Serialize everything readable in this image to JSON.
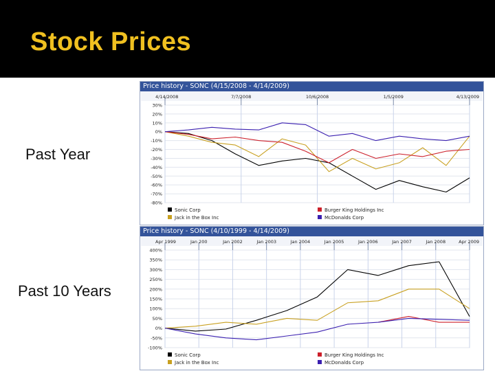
{
  "slide": {
    "title": "Stock Prices",
    "label_year": "Past Year",
    "label_10yr": "Past  10 Years"
  },
  "colors": {
    "title": "#f0c020",
    "header_bg": "#33539a",
    "sonic": "#000000",
    "jack": "#c8a020",
    "burger_king": "#cc1f2a",
    "mcdonalds": "#3a1fb0"
  },
  "chart_data": [
    {
      "type": "line",
      "title": "Price history - SONC (4/15/2008 - 4/14/2009)",
      "x_ticks": [
        "4/14/2008",
        "7/7/2008",
        "10/6/2008",
        "1/5/2009",
        "4/13/2009"
      ],
      "y_ticks": [
        "30%",
        "20%",
        "10%",
        "0%",
        "-10%",
        "-20%",
        "-30%",
        "-40%",
        "-50%",
        "-60%",
        "-70%",
        "-80%"
      ],
      "ylim": [
        -80,
        30
      ],
      "grid": true,
      "legend_position": "bottom",
      "x": [
        0,
        4,
        8,
        12,
        16,
        20,
        24,
        28,
        32,
        36,
        40,
        44,
        48,
        52
      ],
      "series": [
        {
          "name": "Sonic Corp",
          "color": "#000000",
          "values": [
            0,
            -2,
            -10,
            -25,
            -38,
            -33,
            -30,
            -35,
            -50,
            -65,
            -55,
            -62,
            -68,
            -52
          ]
        },
        {
          "name": "Jack in the Box Inc",
          "color": "#c8a020",
          "values": [
            0,
            -5,
            -12,
            -15,
            -28,
            -8,
            -15,
            -45,
            -30,
            -42,
            -35,
            -18,
            -38,
            -5
          ]
        },
        {
          "name": "Burger King Holdings Inc",
          "color": "#cc1f2a",
          "values": [
            0,
            -3,
            -8,
            -6,
            -10,
            -12,
            -22,
            -35,
            -20,
            -30,
            -25,
            -28,
            -22,
            -20
          ]
        },
        {
          "name": "McDonalds Corp",
          "color": "#3a1fb0",
          "values": [
            0,
            2,
            5,
            3,
            2,
            10,
            8,
            -5,
            -2,
            -10,
            -5,
            -8,
            -10,
            -5
          ]
        }
      ]
    },
    {
      "type": "line",
      "title": "Price history - SONC (4/10/1999 - 4/14/2009)",
      "x_ticks": [
        "Apr 1999",
        "Jan 200",
        "Jan 2002",
        "Jan 2003",
        "Jan 2004",
        "Jan 2005",
        "Jan 2006",
        "Jan 2007",
        "Jan 2008",
        "Apr 2009"
      ],
      "y_ticks": [
        "400%",
        "350%",
        "300%",
        "250%",
        "200%",
        "150%",
        "100%",
        "50%",
        "0%",
        "-50%",
        "-100%"
      ],
      "ylim": [
        -100,
        400
      ],
      "grid": true,
      "legend_position": "bottom",
      "x": [
        0,
        1,
        2,
        3,
        4,
        5,
        6,
        7,
        8,
        9,
        10
      ],
      "series": [
        {
          "name": "Sonic Corp",
          "color": "#000000",
          "values": [
            0,
            -15,
            -5,
            40,
            90,
            160,
            300,
            270,
            320,
            340,
            60
          ]
        },
        {
          "name": "Jack in the Box Inc",
          "color": "#c8a020",
          "values": [
            0,
            10,
            30,
            20,
            50,
            40,
            130,
            140,
            200,
            200,
            100
          ]
        },
        {
          "name": "Burger King Holdings Inc",
          "color": "#cc1f2a",
          "values": [
            null,
            null,
            null,
            null,
            null,
            null,
            null,
            30,
            60,
            30,
            30
          ]
        },
        {
          "name": "McDonalds Corp",
          "color": "#3a1fb0",
          "values": [
            0,
            -30,
            -50,
            -60,
            -40,
            -20,
            20,
            30,
            50,
            45,
            40
          ]
        }
      ]
    }
  ]
}
